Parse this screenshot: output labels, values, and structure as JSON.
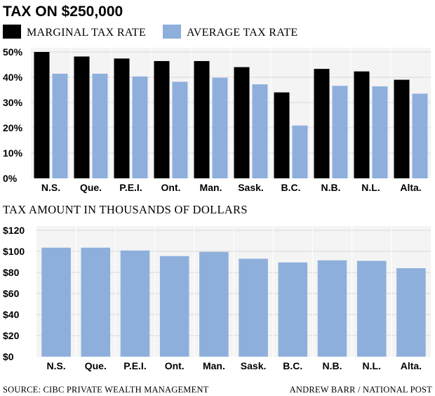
{
  "title": "TAX ON $250,000",
  "legend": {
    "marginal_label": "MARGINAL TAX RATE",
    "average_label": "AVERAGE TAX RATE"
  },
  "colors": {
    "marginal": "#000000",
    "average": "#8eafdc",
    "grid": "#d9d9d9"
  },
  "footer": {
    "source": "SOURCE: CIBC PRIVATE WEALTH MANAGEMENT",
    "credit": "ANDREW BARR / NATIONAL POST"
  },
  "chart_data": [
    {
      "type": "bar",
      "title": "",
      "categories": [
        "N.S.",
        "Que.",
        "P.E.I.",
        "Ont.",
        "Man.",
        "Sask.",
        "B.C.",
        "N.B.",
        "N.L.",
        "Alta."
      ],
      "series": [
        {
          "name": "MARGINAL TAX RATE",
          "values": [
            50,
            48.2,
            47.4,
            46.4,
            46.4,
            44,
            34,
            43.3,
            42.3,
            39
          ]
        },
        {
          "name": "AVERAGE TAX RATE",
          "values": [
            41.4,
            41.4,
            40.3,
            38.2,
            39.8,
            37.2,
            20.9,
            36.6,
            36.4,
            33.5
          ]
        }
      ],
      "ylim": [
        0,
        50
      ],
      "yticks": [
        "0%",
        "10%",
        "20%",
        "30%",
        "40%",
        "50%"
      ],
      "grid": true,
      "legend": "top-left"
    },
    {
      "type": "bar",
      "title": "TAX AMOUNT IN THOUSANDS OF DOLLARS",
      "categories": [
        "N.S.",
        "Que.",
        "P.E.I.",
        "Ont.",
        "Man.",
        "Sask.",
        "B.C.",
        "N.B.",
        "N.L.",
        "Alta."
      ],
      "values": [
        103.5,
        103.5,
        100.8,
        95.5,
        99.5,
        93,
        89.5,
        91.5,
        91,
        84
      ],
      "ylim": [
        0,
        120
      ],
      "yticks": [
        "$0",
        "$20",
        "$40",
        "$60",
        "$80",
        "$100",
        "$120"
      ],
      "grid": true
    }
  ]
}
